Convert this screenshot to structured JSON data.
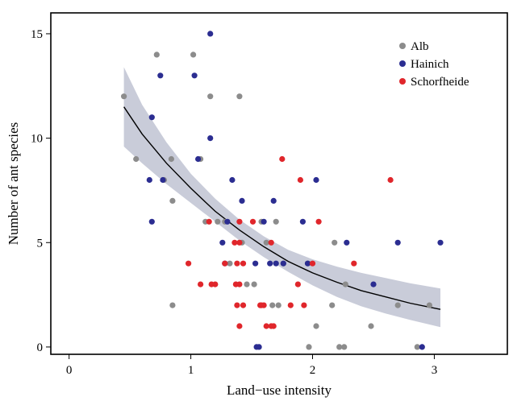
{
  "chart_data": {
    "type": "scatter",
    "title": "",
    "xlabel": "Land−use intensity",
    "ylabel": "Number of ant species",
    "xlim": [
      -0.15,
      3.6
    ],
    "ylim": [
      -0.35,
      16.0
    ],
    "xticks": [
      0,
      1,
      2,
      3
    ],
    "yticks": [
      0,
      5,
      10,
      15
    ],
    "xtick_labels": [
      "0",
      "1",
      "2",
      "3"
    ],
    "ytick_labels": [
      "0",
      "5",
      "10",
      "15"
    ],
    "grid": false,
    "legend_position": "top-right",
    "fit": {
      "color": "#000000",
      "band_color": "#c9ccd9",
      "x_range": [
        0.45,
        3.05
      ],
      "curve": [
        [
          0.45,
          11.5
        ],
        [
          0.6,
          10.2
        ],
        [
          0.8,
          8.8
        ],
        [
          1.0,
          7.6
        ],
        [
          1.2,
          6.5
        ],
        [
          1.4,
          5.6
        ],
        [
          1.6,
          4.8
        ],
        [
          1.8,
          4.1
        ],
        [
          2.0,
          3.55
        ],
        [
          2.2,
          3.1
        ],
        [
          2.4,
          2.7
        ],
        [
          2.6,
          2.4
        ],
        [
          2.8,
          2.1
        ],
        [
          3.05,
          1.8
        ]
      ],
      "band_upper": [
        [
          0.45,
          13.4
        ],
        [
          0.6,
          11.6
        ],
        [
          0.8,
          9.8
        ],
        [
          1.0,
          8.3
        ],
        [
          1.2,
          7.1
        ],
        [
          1.4,
          6.1
        ],
        [
          1.6,
          5.3
        ],
        [
          1.8,
          4.65
        ],
        [
          2.0,
          4.2
        ],
        [
          2.2,
          3.85
        ],
        [
          2.4,
          3.55
        ],
        [
          2.6,
          3.3
        ],
        [
          2.8,
          3.05
        ],
        [
          3.05,
          2.8
        ]
      ],
      "band_lower": [
        [
          0.45,
          9.6
        ],
        [
          0.6,
          8.8
        ],
        [
          0.8,
          7.8
        ],
        [
          1.0,
          6.9
        ],
        [
          1.2,
          6.0
        ],
        [
          1.4,
          5.1
        ],
        [
          1.6,
          4.3
        ],
        [
          1.8,
          3.6
        ],
        [
          2.0,
          2.95
        ],
        [
          2.2,
          2.4
        ],
        [
          2.4,
          1.95
        ],
        [
          2.6,
          1.6
        ],
        [
          2.8,
          1.3
        ],
        [
          3.05,
          0.95
        ]
      ]
    },
    "series": [
      {
        "name": "Alb",
        "color": "#8c8c8c",
        "points": [
          [
            0.45,
            12
          ],
          [
            0.55,
            9
          ],
          [
            0.72,
            14
          ],
          [
            0.78,
            8
          ],
          [
            0.84,
            9
          ],
          [
            0.85,
            7
          ],
          [
            0.85,
            2
          ],
          [
            1.02,
            14
          ],
          [
            1.08,
            9
          ],
          [
            1.12,
            6
          ],
          [
            1.16,
            12
          ],
          [
            1.22,
            6
          ],
          [
            1.28,
            6
          ],
          [
            1.32,
            4
          ],
          [
            1.4,
            12
          ],
          [
            1.42,
            5
          ],
          [
            1.46,
            3
          ],
          [
            1.52,
            3
          ],
          [
            1.58,
            6
          ],
          [
            1.62,
            5
          ],
          [
            1.67,
            2
          ],
          [
            1.7,
            6
          ],
          [
            1.72,
            2
          ],
          [
            1.76,
            4
          ],
          [
            1.96,
            4
          ],
          [
            1.97,
            0
          ],
          [
            2.03,
            1
          ],
          [
            2.16,
            2
          ],
          [
            2.18,
            5
          ],
          [
            2.22,
            0
          ],
          [
            2.26,
            0
          ],
          [
            2.27,
            3
          ],
          [
            2.48,
            1
          ],
          [
            2.7,
            2
          ],
          [
            2.86,
            0
          ],
          [
            2.96,
            2
          ]
        ]
      },
      {
        "name": "Hainich",
        "color": "#2b2d91",
        "points": [
          [
            0.66,
            8
          ],
          [
            0.68,
            6
          ],
          [
            0.68,
            11
          ],
          [
            0.75,
            13
          ],
          [
            0.77,
            8
          ],
          [
            1.03,
            13
          ],
          [
            1.06,
            9
          ],
          [
            1.16,
            10
          ],
          [
            1.16,
            15
          ],
          [
            1.26,
            5
          ],
          [
            1.28,
            4
          ],
          [
            1.3,
            6
          ],
          [
            1.34,
            8
          ],
          [
            1.42,
            7
          ],
          [
            1.53,
            4
          ],
          [
            1.54,
            0
          ],
          [
            1.56,
            0
          ],
          [
            1.6,
            6
          ],
          [
            1.65,
            4
          ],
          [
            1.68,
            7
          ],
          [
            1.7,
            4
          ],
          [
            1.76,
            4
          ],
          [
            1.92,
            6
          ],
          [
            1.96,
            4
          ],
          [
            2.03,
            8
          ],
          [
            2.28,
            5
          ],
          [
            2.5,
            3
          ],
          [
            2.7,
            5
          ],
          [
            2.9,
            0
          ],
          [
            3.05,
            5
          ]
        ]
      },
      {
        "name": "Schorfheide",
        "color": "#e0262b",
        "points": [
          [
            0.98,
            4
          ],
          [
            1.08,
            3
          ],
          [
            1.15,
            6
          ],
          [
            1.17,
            3
          ],
          [
            1.2,
            3
          ],
          [
            1.28,
            4
          ],
          [
            1.36,
            5
          ],
          [
            1.37,
            3
          ],
          [
            1.38,
            2
          ],
          [
            1.38,
            4
          ],
          [
            1.4,
            1
          ],
          [
            1.4,
            6
          ],
          [
            1.4,
            3
          ],
          [
            1.4,
            5
          ],
          [
            1.43,
            2
          ],
          [
            1.43,
            4
          ],
          [
            1.51,
            6
          ],
          [
            1.57,
            2
          ],
          [
            1.58,
            2
          ],
          [
            1.6,
            2
          ],
          [
            1.62,
            1
          ],
          [
            1.66,
            5
          ],
          [
            1.66,
            1
          ],
          [
            1.68,
            1
          ],
          [
            1.75,
            9
          ],
          [
            1.82,
            2
          ],
          [
            1.88,
            3
          ],
          [
            1.9,
            8
          ],
          [
            1.93,
            2
          ],
          [
            2.0,
            4
          ],
          [
            2.05,
            6
          ],
          [
            2.34,
            4
          ],
          [
            2.64,
            8
          ]
        ]
      }
    ]
  }
}
